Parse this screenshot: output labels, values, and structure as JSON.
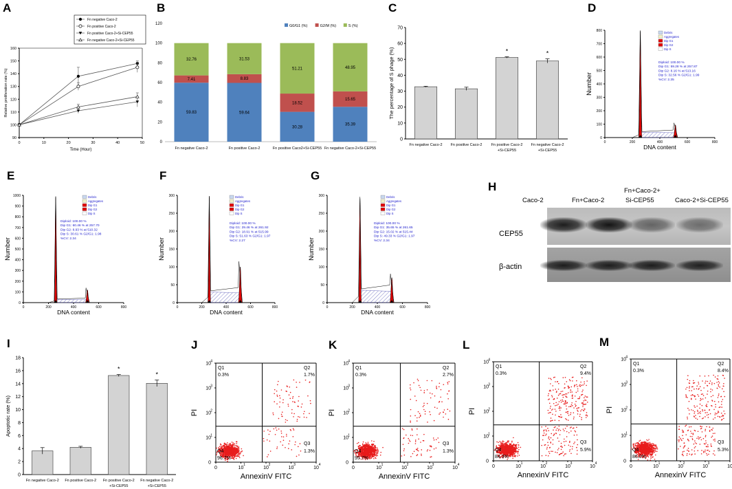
{
  "panel_labels": {
    "A": "A",
    "B": "B",
    "C": "C",
    "D": "D",
    "E": "E",
    "F": "F",
    "G": "G",
    "H": "H",
    "I": "I",
    "J": "J",
    "K": "K",
    "L": "L",
    "M": "M"
  },
  "chart_data": [
    {
      "id": "A",
      "type": "line",
      "title": "",
      "xlabel": "Time (Hour)",
      "ylabel": "Relative proliferation rate (%)",
      "xlim": [
        0,
        50
      ],
      "ylim": [
        90,
        160
      ],
      "xticks": [
        "0",
        "10",
        "20",
        "30",
        "40",
        "50"
      ],
      "yticks": [
        "90",
        "100",
        "110",
        "120",
        "130",
        "140",
        "150",
        "160"
      ],
      "legend_position": "top-right",
      "x": [
        0,
        24,
        48
      ],
      "series": [
        {
          "name": "Fn negative Caco-2",
          "marker": "filled-circle",
          "values": [
            100,
            138,
            148
          ],
          "err": [
            0,
            7,
            2
          ]
        },
        {
          "name": "Fn positive Caco-2",
          "marker": "open-circle",
          "values": [
            100,
            130,
            145
          ],
          "err": [
            0,
            3,
            4
          ]
        },
        {
          "name": "Fn positive Caco-2+Si-CEP55",
          "marker": "filled-triangle",
          "values": [
            100,
            111,
            118
          ],
          "err": [
            0,
            2,
            4
          ]
        },
        {
          "name": "Fn negative Caco-2+Si-CEP55",
          "marker": "open-triangle",
          "values": [
            100,
            114,
            122
          ],
          "err": [
            0,
            2,
            3
          ]
        }
      ]
    },
    {
      "id": "B",
      "type": "bar",
      "stacked": true,
      "title": "",
      "ylim": [
        0,
        120
      ],
      "yticks": [
        "0",
        "20",
        "40",
        "60",
        "80",
        "100",
        "120"
      ],
      "legend_position": "top-right",
      "categories": [
        "Fn negative Caco-2",
        "Fn positive Caco-2",
        "Fn positive Caco2+Si-CEP55",
        "Fn negative Caco-2+Si-CEP55"
      ],
      "series": [
        {
          "name": "G0/G1 (%)",
          "color": "#4f81bd",
          "values": [
            59.83,
            59.64,
            30.28,
            35.39
          ],
          "labels": [
            "59.83",
            "59.64",
            "30.28",
            "35.39"
          ]
        },
        {
          "name": "G2/M (%)",
          "color": "#c0504d",
          "values": [
            7.41,
            8.83,
            18.52,
            15.65
          ],
          "labels": [
            "7.41",
            "8.83",
            "18.52",
            "15.65"
          ]
        },
        {
          "name": "S (%)",
          "color": "#9bbb59",
          "values": [
            32.76,
            31.53,
            51.21,
            48.95
          ],
          "labels": [
            "32.76",
            "31.53",
            "51.21",
            "48.95"
          ]
        }
      ]
    },
    {
      "id": "C",
      "type": "bar",
      "title": "",
      "ylabel": "The percentage of S phage (%)",
      "ylim": [
        0,
        70
      ],
      "yticks": [
        "0",
        "10",
        "20",
        "30",
        "40",
        "50",
        "60",
        "70"
      ],
      "categories": [
        [
          "Fn negative Caco-2"
        ],
        [
          "Fn positive Caco-2"
        ],
        [
          "Fn positive Caco-2",
          "+Si-CEP55"
        ],
        [
          "Fn negative Caco-2",
          "+Si-CEP55"
        ]
      ],
      "values": [
        32.8,
        31.5,
        51.2,
        49.0
      ],
      "err": [
        0.3,
        1.0,
        0.4,
        1.3
      ],
      "significance": [
        "",
        "",
        "*",
        "*"
      ]
    },
    {
      "id": "I",
      "type": "bar",
      "title": "",
      "ylabel": "Apoptotic rate (%)",
      "ylim": [
        0,
        18
      ],
      "yticks": [
        "0",
        "2",
        "4",
        "6",
        "8",
        "10",
        "12",
        "14",
        "16",
        "18"
      ],
      "categories": [
        [
          "Fn negative Caco-2"
        ],
        [
          "Fn positive Caco-2"
        ],
        [
          "Fn positive Caco-2",
          "+Si-CEP55"
        ],
        [
          "Fn negative Caco-2",
          "+Si-CEP55"
        ]
      ],
      "values": [
        3.65,
        4.2,
        15.25,
        14.05
      ],
      "err": [
        0.5,
        0.15,
        0.15,
        0.5
      ],
      "significance": [
        "",
        "",
        "*",
        "*"
      ]
    }
  ],
  "cell_cycle": [
    {
      "id": "D",
      "ymax": 800,
      "yticks": [
        "0",
        "100",
        "200",
        "300",
        "400",
        "500",
        "600",
        "700",
        "800"
      ],
      "xticks": [
        "0",
        "200",
        "400",
        "600",
        "800"
      ],
      "xlabel": "DNA content",
      "ylabel": "Number",
      "g1_peak": 790,
      "g2_peak": 95,
      "s_level": 40,
      "g1_pos": 257.87,
      "g2_pos": 513.16,
      "legend": [
        "Debris",
        "Aggregates",
        "Dip G1",
        "Dip G2",
        "Dip S"
      ],
      "stats": [
        "Diploid: 100.00 %",
        "Dip G1: 59.28 % at 257.87",
        "Dip G2: 8.16 % at 513.16",
        "Dip S: 32.56 %   G2/G1: 1.99",
        "%CV: 2.35"
      ]
    },
    {
      "id": "E",
      "ymax": 1000,
      "yticks": [
        "0",
        "100",
        "200",
        "300",
        "400",
        "500",
        "600",
        "700",
        "800",
        "900",
        "1000"
      ],
      "xticks": [
        "0",
        "200",
        "400",
        "600",
        "800"
      ],
      "xlabel": "DNA content",
      "ylabel": "Number",
      "g1_peak": 980,
      "g2_peak": 120,
      "s_level": 30,
      "g1_pos": 257.7,
      "g2_pos": 510.32,
      "legend": [
        "Debris",
        "Aggregates",
        "Dip G1",
        "Dip G2",
        "Dip S"
      ],
      "stats": [
        "Diploid: 100.00 %",
        "Dip G1: 60.46 % at 257.70",
        "Dip G2: 8.93 % at 510.32",
        "Dip S: 30.61 %   G2/G1: 1.98",
        "%CV: 2.34"
      ]
    },
    {
      "id": "F",
      "ymax": 300,
      "yticks": [
        "0",
        "50",
        "100",
        "150",
        "200",
        "250",
        "300"
      ],
      "xticks": [
        "0",
        "200",
        "400",
        "600",
        "800"
      ],
      "xlabel": "DNA content",
      "ylabel": "Number",
      "g1_peak": 295,
      "g2_peak": 100,
      "s_level": 30,
      "g1_pos": 261.92,
      "g2_pos": 515.99,
      "legend": [
        "Debris",
        "Aggregates",
        "Dip G1",
        "Dip G2",
        "Dip S"
      ],
      "stats": [
        "Diploid: 100.00 %",
        "Dip G1: 29.46 % at 261.92",
        "Dip G2: 18.91 % at 515.99",
        "Dip S: 51.63 %   G2/G1: 1.97",
        "%CV: 2.27"
      ]
    },
    {
      "id": "G",
      "ymax": 300,
      "yticks": [
        "0",
        "50",
        "100",
        "150",
        "200",
        "250",
        "300"
      ],
      "xticks": [
        "0",
        "200",
        "400",
        "600",
        "800"
      ],
      "xlabel": "DNA content",
      "ylabel": "Number",
      "g1_peak": 293,
      "g2_peak": 70,
      "s_level": 35,
      "g1_pos": 261.65,
      "g2_pos": 515.44,
      "legend": [
        "Debris",
        "Aggregates",
        "Dip G1",
        "Dip G2",
        "Dip S"
      ],
      "stats": [
        "Diploid: 100.00 %",
        "Dip G1: 35.65 % at 261.65",
        "Dip G2: 15.02 % at 515.44",
        "Dip S: 49.33 %   G2/G1: 1.97",
        "%CV: 2.34"
      ]
    }
  ],
  "western_blot": {
    "lanes": [
      "Caco-2",
      "Fn+Caco-2",
      "Fn+Caco-2+\nSi-CEP55",
      "Caco-2+Si-CEP55"
    ],
    "lane_line1": [
      "Caco-2",
      "Fn+Caco-2",
      "Fn+Caco-2+",
      "Caco-2+Si-CEP55"
    ],
    "lane_line2": [
      "",
      "",
      "Si-CEP55",
      ""
    ],
    "rows": [
      "CEP55",
      "β-actin"
    ],
    "cep55_intensity": [
      0.95,
      1.0,
      0.55,
      0.5
    ],
    "actin_intensity": [
      0.9,
      0.9,
      0.9,
      0.88
    ]
  },
  "flow": [
    {
      "id": "J",
      "q1": "0.3%",
      "q2": "1.7%",
      "q3": "1.3%",
      "q4": "96.7%",
      "apoptotic_fraction": 0.03
    },
    {
      "id": "K",
      "q1": "0.3%",
      "q2": "2.7%",
      "q3": "1.3%",
      "q4": "95.7%",
      "apoptotic_fraction": 0.04
    },
    {
      "id": "L",
      "q1": "0.3%",
      "q2": "9.4%",
      "q3": "5.9%",
      "q4": "84.3%",
      "apoptotic_fraction": 0.15
    },
    {
      "id": "M",
      "q1": "0.3%",
      "q2": "8.4%",
      "q3": "5.3%",
      "q4": "86.0%",
      "apoptotic_fraction": 0.14
    }
  ],
  "flow_axes": {
    "xlabel": "AnnexinV FITC",
    "ylabel": "PI",
    "q1_name": "Q1",
    "q2_name": "Q2",
    "q3_name": "Q3",
    "q4_name": "Q4",
    "decades": [
      "0",
      "10",
      "10",
      "10",
      "10"
    ],
    "exps": [
      "",
      "1",
      "2",
      "3",
      "4"
    ]
  }
}
